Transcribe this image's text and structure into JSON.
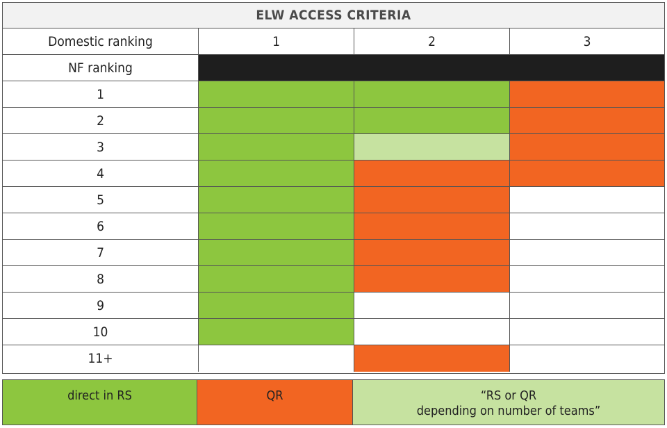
{
  "title": "ELW ACCESS CRITERIA",
  "header": {
    "domestic_label": "Domestic ranking",
    "columns": [
      "1",
      "2",
      "3"
    ],
    "nf_label": "NF ranking"
  },
  "colors": {
    "green": "#8dc63f",
    "light_green": "#c6e2a0",
    "orange": "#f26522",
    "black": "#1e1e1e"
  },
  "rows": [
    {
      "label": "1",
      "cells": [
        "green",
        "green",
        "orange"
      ]
    },
    {
      "label": "2",
      "cells": [
        "green",
        "green",
        "orange"
      ]
    },
    {
      "label": "3",
      "cells": [
        "green",
        "light",
        "orange"
      ]
    },
    {
      "label": "4",
      "cells": [
        "green",
        "orange",
        "orange"
      ]
    },
    {
      "label": "5",
      "cells": [
        "green",
        "orange",
        "white"
      ]
    },
    {
      "label": "6",
      "cells": [
        "green",
        "orange",
        "white"
      ]
    },
    {
      "label": "7",
      "cells": [
        "green",
        "orange",
        "white"
      ]
    },
    {
      "label": "8",
      "cells": [
        "green",
        "orange",
        "white"
      ]
    },
    {
      "label": "9",
      "cells": [
        "green",
        "white",
        "white"
      ]
    },
    {
      "label": "10",
      "cells": [
        "green",
        "white",
        "white"
      ]
    },
    {
      "label": "11+",
      "cells": [
        "white",
        "orange",
        "white"
      ]
    }
  ],
  "legend": {
    "direct": "direct in RS",
    "qr": "QR",
    "rs_or_qr_line1": "“RS or QR",
    "rs_or_qr_line2": "depending on number of teams”"
  }
}
